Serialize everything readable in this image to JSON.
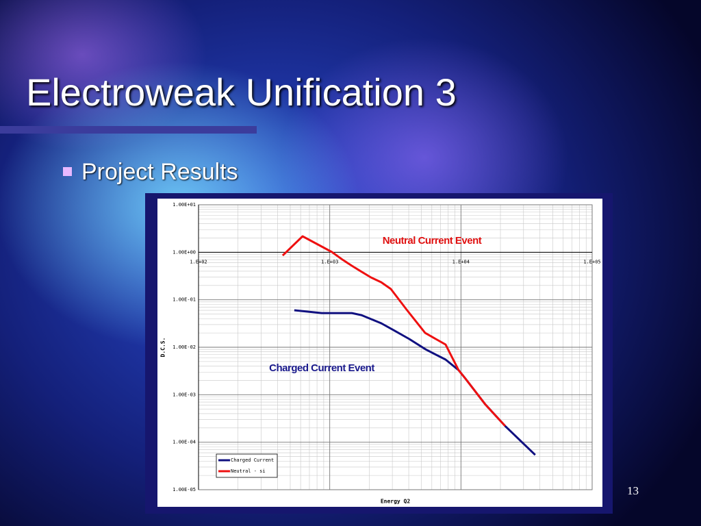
{
  "slide": {
    "title": "Electroweak Unification 3",
    "bullet": "Project Results",
    "page_number": "13"
  },
  "chart_data": {
    "type": "line",
    "x_label": "Energy Q2",
    "y_label": "D.C.S.",
    "x_log": true,
    "y_log": true,
    "grid": true,
    "legend": "bottom-left",
    "xlim": [
      100,
      100000
    ],
    "xticks": [
      {
        "value": 100,
        "label": "1.E+02"
      },
      {
        "value": 1000,
        "label": "1.E+03"
      },
      {
        "value": 10000,
        "label": "1.E+04"
      },
      {
        "value": 100000,
        "label": "1.E+05"
      }
    ],
    "ylim": [
      1e-05,
      10
    ],
    "yticks": [
      {
        "value": 10,
        "label": "1.00E+01"
      },
      {
        "value": 1,
        "label": "1.00E+00"
      },
      {
        "value": 0.1,
        "label": "1.00E-01"
      },
      {
        "value": 0.01,
        "label": "1.00E-02"
      },
      {
        "value": 0.001,
        "label": "1.00E-03"
      },
      {
        "value": 0.0001,
        "label": "1.00E-04"
      },
      {
        "value": 1e-05,
        "label": "1.00E-05"
      }
    ],
    "annotations": [
      {
        "text": "Neutral Current Event",
        "color": "#e01010"
      },
      {
        "text": "Charged Current Event",
        "color": "#1a1a8c"
      }
    ],
    "series": [
      {
        "name": "Charged Current",
        "color": "#101080",
        "x": [
          537,
          869,
          1040,
          1473,
          1744,
          2470,
          3070,
          4040,
          5390,
          7640,
          9600,
          10800,
          15300,
          21700,
          36800
        ],
        "values": [
          0.06,
          0.0525,
          0.0525,
          0.0525,
          0.0475,
          0.032,
          0.0229,
          0.0149,
          0.009,
          0.0055,
          0.0033,
          0.0022,
          0.00063,
          0.00022,
          5.4e-05
        ]
      },
      {
        "name": "Neutral - si",
        "color": "#ee1010",
        "x": [
          438,
          621,
          869,
          1040,
          1231,
          1473,
          1744,
          2065,
          2470,
          2924,
          3855,
          5330,
          7640,
          9600,
          10800,
          15300,
          17100,
          21700
        ],
        "values": [
          0.855,
          2.17,
          1.32,
          1.01,
          0.72,
          0.52,
          0.39,
          0.295,
          0.234,
          0.168,
          0.062,
          0.02,
          0.0114,
          0.0033,
          0.0022,
          0.00063,
          0.00045,
          0.00022
        ]
      }
    ]
  }
}
